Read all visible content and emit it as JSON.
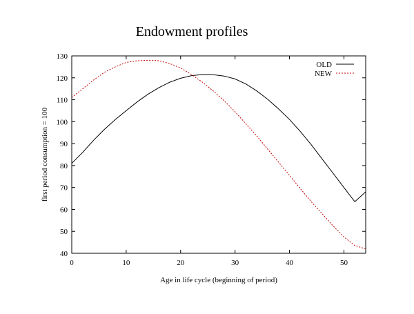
{
  "chart_data": {
    "type": "line",
    "title": "Endowment profiles",
    "xlabel": "Age in life cycle (beginning of period)",
    "ylabel": "first period consumption = 100",
    "xlim": [
      0,
      54
    ],
    "ylim": [
      40,
      130
    ],
    "xticks": [
      0,
      10,
      20,
      30,
      40,
      50
    ],
    "yticks": [
      40,
      50,
      60,
      70,
      80,
      90,
      100,
      110,
      120,
      130
    ],
    "grid": false,
    "legend_position": "top-right",
    "series": [
      {
        "name": "OLD",
        "color": "#000000",
        "style": "solid",
        "x": [
          0,
          2,
          4,
          6,
          8,
          10,
          12,
          14,
          16,
          18,
          20,
          22,
          24,
          25,
          26,
          28,
          30,
          32,
          34,
          36,
          38,
          40,
          42,
          44,
          46,
          48,
          50,
          52,
          54
        ],
        "y": [
          81,
          86,
          91.5,
          96.5,
          101,
          105,
          109,
          112.5,
          115.5,
          118,
          119.8,
          121,
          121.5,
          121.5,
          121.4,
          120.8,
          119.5,
          117.2,
          114,
          110.2,
          105.8,
          101,
          95.5,
          89.5,
          83,
          76.5,
          70,
          63.5,
          68
        ]
      },
      {
        "name": "NEW",
        "color": "#c00000",
        "style": "dashed",
        "x": [
          0,
          2,
          4,
          6,
          8,
          10,
          12,
          14,
          15,
          16,
          18,
          20,
          22,
          24,
          26,
          28,
          30,
          32,
          34,
          36,
          38,
          40,
          42,
          44,
          46,
          48,
          50,
          52,
          54
        ],
        "y": [
          111,
          115,
          119,
          122.5,
          125,
          127,
          127.8,
          128,
          128,
          127.8,
          126.5,
          124.5,
          121.5,
          118,
          114,
          109.5,
          104.5,
          99,
          93.5,
          87.5,
          81.5,
          75.5,
          69.5,
          63.5,
          58,
          52.5,
          47.5,
          43.5,
          42
        ]
      }
    ]
  }
}
